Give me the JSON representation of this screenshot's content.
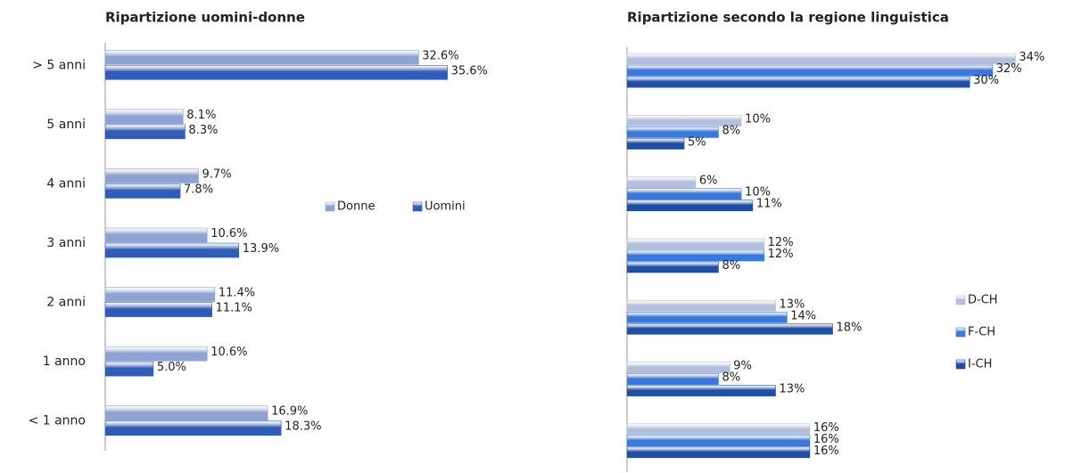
{
  "chart_data": [
    {
      "type": "barh",
      "title": "Ripartizione uomini-donne",
      "categories": [
        "> 5 anni",
        "5 anni",
        "4 anni",
        "3 anni",
        "2 anni",
        "1 anno",
        "< 1 anno"
      ],
      "series": [
        {
          "name": "Donne",
          "color": "#8ea3d2",
          "values": [
            32.6,
            8.1,
            9.7,
            10.6,
            11.4,
            10.6,
            16.9
          ],
          "value_labels": [
            "32.6%",
            "8.1%",
            "9.7%",
            "10.6%",
            "11.4%",
            "10.6%",
            "16.9%"
          ]
        },
        {
          "name": "Uomini",
          "color": "#2f5cb8",
          "values": [
            35.6,
            8.3,
            7.8,
            13.9,
            11.1,
            5.0,
            18.3
          ],
          "value_labels": [
            "35.6%",
            "8.3%",
            "7.8%",
            "13.9%",
            "11.1%",
            "5.0%",
            "18.3%"
          ]
        }
      ],
      "xlim": [
        0,
        40
      ],
      "legend": "right"
    },
    {
      "type": "barh",
      "title": "Ripartizione secondo la regione linguistica",
      "categories": [
        null,
        null,
        null,
        null,
        null,
        null,
        null
      ],
      "series": [
        {
          "name": "D-CH",
          "color": "#b3bfdc",
          "values": [
            34,
            10,
            6,
            12,
            13,
            9,
            16
          ],
          "value_labels": [
            "34%",
            "10%",
            "6%",
            "12%",
            "13%",
            "9%",
            "16%"
          ]
        },
        {
          "name": "F-CH",
          "color": "#3b78de",
          "values": [
            32,
            8,
            10,
            12,
            14,
            8,
            16
          ],
          "value_labels": [
            "32%",
            "8%",
            "10%",
            "12%",
            "14%",
            "8%",
            "16%"
          ]
        },
        {
          "name": "I-CH",
          "color": "#1f4ea6",
          "values": [
            30,
            5,
            11,
            8,
            18,
            13,
            16
          ],
          "value_labels": [
            "30%",
            "5%",
            "11%",
            "8%",
            "18%",
            "13%",
            "16%"
          ]
        }
      ],
      "xlim": [
        0,
        36
      ],
      "legend": "right"
    }
  ]
}
